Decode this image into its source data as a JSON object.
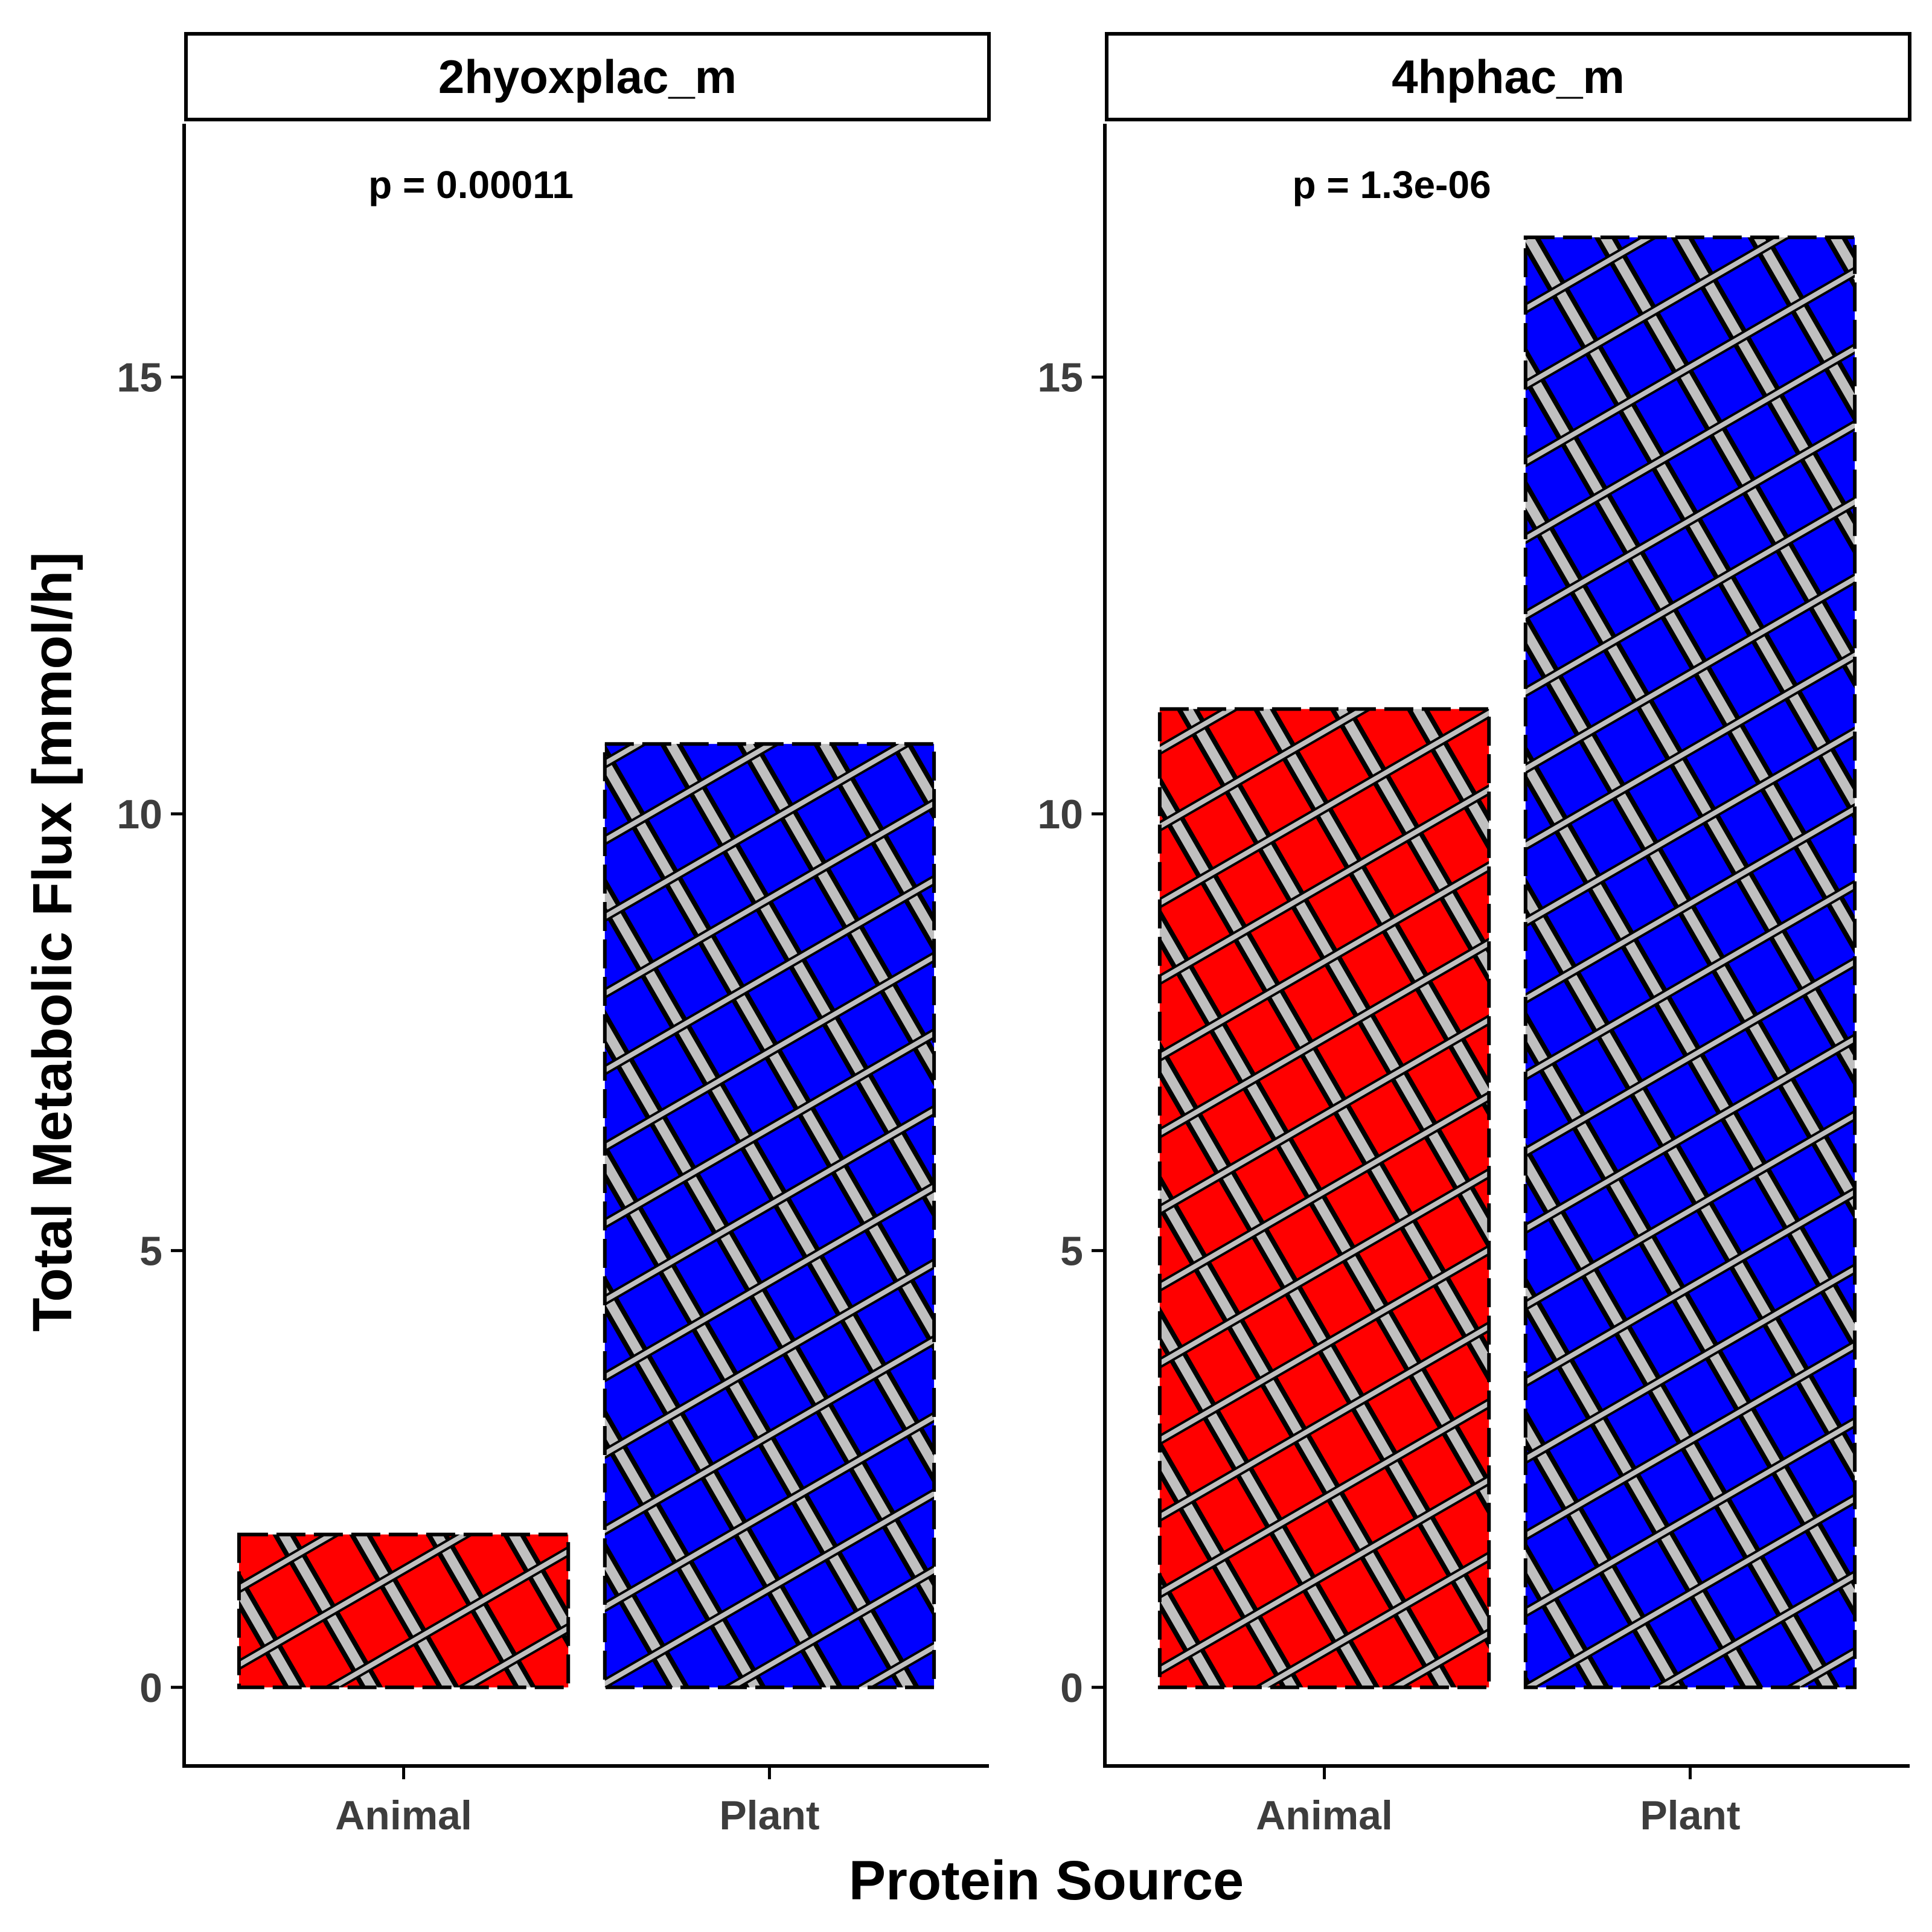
{
  "chart_data": {
    "type": "bar",
    "xlabel": "Protein Source",
    "ylabel": "Total Metabolic Flux [mmol/h]",
    "ylim": [
      -0.9,
      17.9
    ],
    "yticks": [
      0,
      5,
      10,
      15
    ],
    "categories": [
      "Animal",
      "Plant"
    ],
    "colors": {
      "Animal": "#ff0000",
      "Plant": "#0000ff",
      "stripe": "#c0c0c0",
      "outline": "#000000"
    },
    "pattern": "crosshatch-stripes",
    "grid": false,
    "legend": "none",
    "panels": [
      {
        "title": "2hyoxplac_m",
        "annotation": "p = 0.00011",
        "values": [
          1.75,
          10.8
        ]
      },
      {
        "title": "4hphac_m",
        "annotation": "p = 1.3e-06",
        "values": [
          11.2,
          16.6
        ]
      }
    ]
  }
}
